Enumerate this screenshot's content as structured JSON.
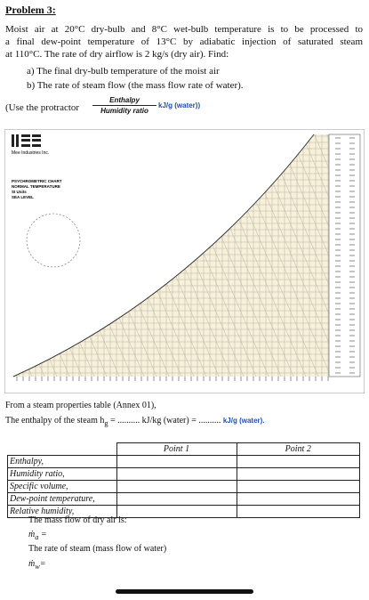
{
  "problem": {
    "heading": "Problem 3:",
    "statement": [
      "Moist air at 20°C dry-bulb and 8°C wet-bulb temperature is to be processed to",
      "a final dew-point temperature of 13°C by adiabatic injection of saturated steam",
      "at 110°C. The rate of dry airflow is 2 kg/s (dry air). Find:"
    ],
    "questions": [
      "a) The final dry-bulb temperature of the moist air",
      "b) The rate of steam flow (the mass flow rate of water)."
    ],
    "protractor": {
      "prefix": "(Use the protractor",
      "numerator": "Enthalpy",
      "denominator": "Humidity ratio",
      "unit": "kJ/g (water))"
    }
  },
  "chart_image": {
    "brand": "Mee Industries Inc.",
    "title": "PSYCHROMETRIC CHART",
    "subtitle": "NORMAL TEMPERATURE",
    "units": "SI Units",
    "level": "SEA LEVEL"
  },
  "steam": {
    "source": "From a steam properties table (Annex 01),",
    "prefix": "The enthalpy of the steam h",
    "subscript": "g",
    "middle": " = .......... kJ/kg (water) = .......... ",
    "unit": "kJ/g (water)."
  },
  "table": {
    "columns": [
      "Point 1",
      "Point 2"
    ],
    "rows": [
      "Enthalpy,",
      "Humidity ratio,",
      "Specific volume,",
      "Dew-point temperature,",
      "Relative humidity,"
    ]
  },
  "answers": {
    "dry_air": "The mass flow of dry air is:",
    "dry_air_symbol": "ṁ",
    "dry_air_sub": "a",
    "dry_air_eq": " =",
    "steam": "The rate of steam (mass flow of water)",
    "steam_symbol": "ṁ",
    "steam_sub": "w",
    "steam_eq": "="
  }
}
